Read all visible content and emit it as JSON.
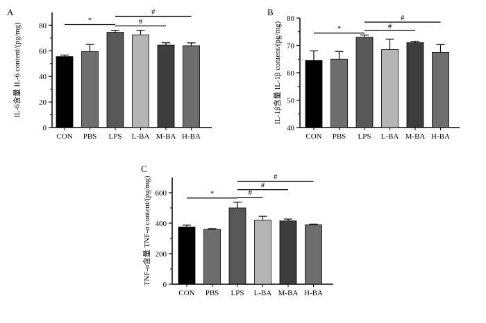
{
  "chart_data": [
    {
      "panel": "A",
      "type": "bar",
      "categories": [
        "CON",
        "PBS",
        "LPS",
        "L-BA",
        "M-BA",
        "H-BA"
      ],
      "values": [
        55.5,
        59.5,
        74.5,
        72.5,
        64.5,
        64
      ],
      "errors": [
        1.2,
        5.5,
        1.5,
        3.5,
        1.8,
        2.2
      ],
      "ylabel": "IL-6含量 IL-6 content/(pg/mg)",
      "ylim": [
        0,
        90
      ],
      "yticks": [
        0,
        20,
        40,
        60,
        80
      ],
      "colors": [
        "#000000",
        "#6e6e6e",
        "#575757",
        "#b5b5b5",
        "#3d3d3d",
        "#6e6e6e"
      ],
      "significance": [
        {
          "from": 0,
          "to": 2,
          "label": "*",
          "y": 80.5
        },
        {
          "from": 2,
          "to": 4,
          "label": "#",
          "y": 79.5
        },
        {
          "from": 2,
          "to": 5,
          "label": "#",
          "y": 87
        }
      ]
    },
    {
      "panel": "B",
      "type": "bar",
      "categories": [
        "CON",
        "PBS",
        "LPS",
        "L-BA",
        "M-BA",
        "H-BA"
      ],
      "values": [
        64.5,
        65,
        73,
        68.5,
        71,
        67.5
      ],
      "errors": [
        3.5,
        2.8,
        0.8,
        3.8,
        0.5,
        2.8
      ],
      "ylabel": "IL-1β含量 IL-1β content/(pg/mg)",
      "ylim": [
        40,
        80
      ],
      "yticks": [
        40,
        50,
        60,
        70,
        80
      ],
      "colors": [
        "#000000",
        "#6e6e6e",
        "#575757",
        "#b5b5b5",
        "#3d3d3d",
        "#6e6e6e"
      ],
      "significance": [
        {
          "from": 0,
          "to": 2,
          "label": "*",
          "y": 74.5
        },
        {
          "from": 2,
          "to": 4,
          "label": "#",
          "y": 75.5
        },
        {
          "from": 2,
          "to": 5,
          "label": "#",
          "y": 78.5
        }
      ]
    },
    {
      "panel": "C",
      "type": "bar",
      "categories": [
        "CON",
        "PBS",
        "LPS",
        "L-BA",
        "M-BA",
        "H-BA"
      ],
      "values": [
        375,
        360,
        500,
        420,
        415,
        390
      ],
      "errors": [
        12,
        4,
        38,
        25,
        12,
        4
      ],
      "ylabel": "TNF-α含量 TNF-α content/(pg/mg)",
      "ylim": [
        0,
        700
      ],
      "yticks": [
        0,
        200,
        400,
        600
      ],
      "colors": [
        "#000000",
        "#6e6e6e",
        "#575757",
        "#b5b5b5",
        "#3d3d3d",
        "#6e6e6e"
      ],
      "significance": [
        {
          "from": 0,
          "to": 2,
          "label": "*",
          "y": 565
        },
        {
          "from": 2,
          "to": 3,
          "label": "#",
          "y": 570
        },
        {
          "from": 2,
          "to": 4,
          "label": "#",
          "y": 620
        },
        {
          "from": 2,
          "to": 5,
          "label": "#",
          "y": 675
        }
      ]
    }
  ]
}
